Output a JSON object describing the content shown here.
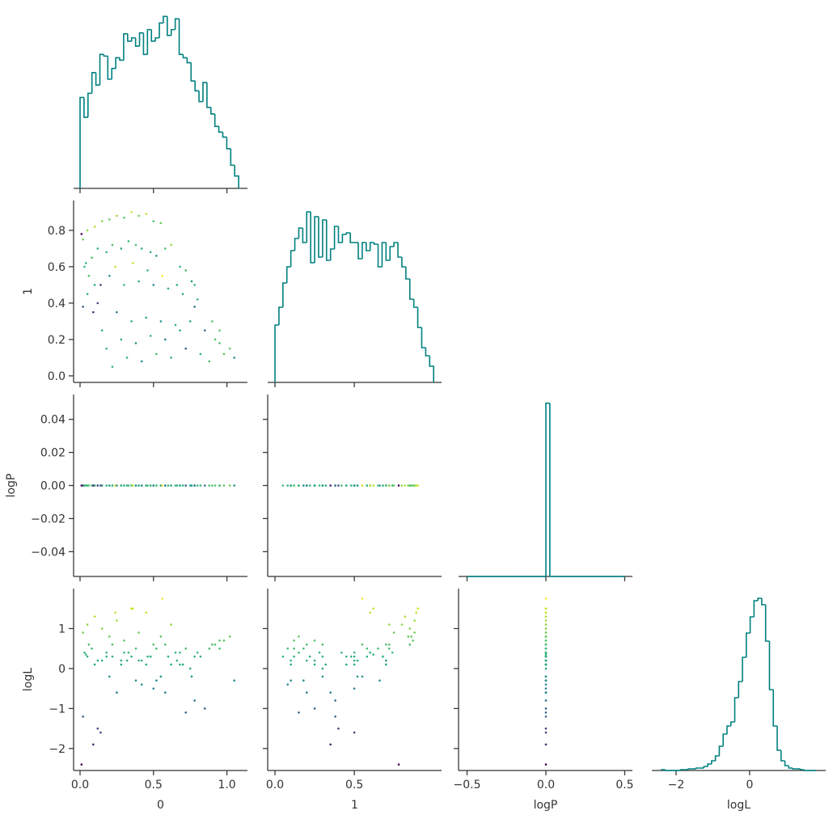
{
  "chart_data": {
    "type": "corner",
    "parameters": [
      "0",
      "1",
      "logP",
      "logL"
    ],
    "hist_color": "#008080",
    "cmap": "viridis",
    "color_by": "logL",
    "clim": [
      -2.4,
      1.8
    ],
    "axes": [
      {
        "xlim": [
          -0.044,
          1.14
        ],
        "xticks": [
          {
            "value": 0,
            "label": "0.0"
          },
          {
            "value": 0.5,
            "label": "0.5"
          },
          {
            "value": 1.0,
            "label": "1.0"
          }
        ]
      },
      {
        "xlim": [
          -0.046,
          1.05
        ],
        "xticks": [
          {
            "value": 0,
            "label": "0.0"
          },
          {
            "value": 0.5,
            "label": "0.5"
          }
        ],
        "ylim": [
          -0.036,
          0.964
        ],
        "yticks": [
          {
            "value": 0,
            "label": "0.0"
          },
          {
            "value": 0.2,
            "label": "0.2"
          },
          {
            "value": 0.4,
            "label": "0.4"
          },
          {
            "value": 0.6,
            "label": "0.6"
          },
          {
            "value": 0.8,
            "label": "0.8"
          }
        ]
      },
      {
        "xlim": [
          -0.554,
          0.549
        ],
        "xticks": [
          {
            "value": -0.5,
            "label": "−0.5"
          },
          {
            "value": 0,
            "label": "0.0"
          },
          {
            "value": 0.5,
            "label": "0.5"
          }
        ],
        "ylim": [
          -0.055,
          0.055
        ],
        "yticks": [
          {
            "value": -0.04,
            "label": "−0.04"
          },
          {
            "value": -0.02,
            "label": "−0.02"
          },
          {
            "value": 0,
            "label": "0.00"
          },
          {
            "value": 0.02,
            "label": "0.02"
          },
          {
            "value": 0.04,
            "label": "0.04"
          }
        ]
      },
      {
        "xlim": [
          -2.66,
          2.07
        ],
        "xticks": [
          {
            "value": -2,
            "label": "−2"
          },
          0
        ],
        "ylim": [
          -2.55,
          2.0
        ],
        "yticks": [
          {
            "value": -2,
            "label": "−2"
          },
          {
            "value": -1,
            "label": "−1"
          },
          0,
          1
        ]
      }
    ],
    "histograms": [
      {
        "bins": [
          0,
          0.027,
          0.054,
          0.081,
          0.108,
          0.135,
          0.162,
          0.189,
          0.216,
          0.243,
          0.27,
          0.297,
          0.324,
          0.351,
          0.378,
          0.405,
          0.432,
          0.459,
          0.486,
          0.513,
          0.54,
          0.567,
          0.594,
          0.621,
          0.648,
          0.675,
          0.702,
          0.729,
          0.756,
          0.783,
          0.81,
          0.837,
          0.864,
          0.891,
          0.918,
          0.945,
          0.972,
          0.999,
          1.026,
          1.053,
          1.08
        ],
        "counts": [
          110,
          86,
          115,
          140,
          125,
          162,
          160,
          132,
          145,
          158,
          155,
          187,
          178,
          182,
          172,
          188,
          162,
          192,
          178,
          182,
          200,
          208,
          185,
          192,
          205,
          162,
          158,
          152,
          130,
          118,
          105,
          128,
          98,
          90,
          75,
          68,
          62,
          48,
          28,
          15
        ],
        "ylim": [
          0,
          220
        ]
      },
      {
        "bins": [
          0,
          0.025,
          0.05,
          0.075,
          0.1,
          0.125,
          0.15,
          0.175,
          0.2,
          0.225,
          0.25,
          0.275,
          0.3,
          0.325,
          0.35,
          0.375,
          0.4,
          0.425,
          0.45,
          0.475,
          0.5,
          0.525,
          0.55,
          0.575,
          0.6,
          0.625,
          0.65,
          0.675,
          0.7,
          0.725,
          0.75,
          0.775,
          0.8,
          0.825,
          0.85,
          0.875,
          0.9,
          0.925,
          0.95,
          0.975,
          1.0
        ],
        "counts": [
          71,
          93,
          123,
          143,
          163,
          178,
          191,
          173,
          211,
          148,
          205,
          155,
          201,
          151,
          165,
          193,
          173,
          183,
          185,
          173,
          173,
          153,
          173,
          163,
          173,
          171,
          143,
          173,
          151,
          168,
          173,
          155,
          143,
          128,
          103,
          93,
          68,
          43,
          33,
          20
        ],
        "ylim": [
          0,
          225
        ]
      },
      {
        "bins": [
          -0.5,
          -0.475,
          -0.45,
          -0.425,
          -0.4,
          -0.375,
          -0.35,
          -0.325,
          -0.3,
          -0.275,
          -0.25,
          -0.225,
          -0.2,
          -0.175,
          -0.15,
          -0.125,
          -0.1,
          -0.075,
          -0.05,
          -0.025,
          0,
          0.025,
          0.05,
          0.075,
          0.1,
          0.125,
          0.15,
          0.175,
          0.2,
          0.225,
          0.25,
          0.275,
          0.3,
          0.325,
          0.35,
          0.375,
          0.4,
          0.425,
          0.45,
          0.475,
          0.5
        ],
        "counts": [
          0,
          0,
          0,
          0,
          0,
          0,
          0,
          0,
          0,
          0,
          0,
          0,
          0,
          0,
          0,
          0,
          0,
          0,
          0,
          0,
          200,
          0,
          0,
          0,
          0,
          0,
          0,
          0,
          0,
          0,
          0,
          0,
          0,
          0,
          0,
          0,
          0,
          0,
          0,
          0
        ],
        "ylim": [
          0,
          210
        ]
      },
      {
        "bins": [
          -2.4,
          -2.295,
          -2.19,
          -2.085,
          -1.98,
          -1.875,
          -1.77,
          -1.665,
          -1.56,
          -1.455,
          -1.35,
          -1.245,
          -1.14,
          -1.035,
          -0.93,
          -0.825,
          -0.72,
          -0.615,
          -0.51,
          -0.405,
          -0.3,
          -0.195,
          -0.09,
          0.015,
          0.12,
          0.225,
          0.33,
          0.435,
          0.54,
          0.645,
          0.75,
          0.855,
          0.96,
          1.065,
          1.17,
          1.275,
          1.38,
          1.485,
          1.59,
          1.695,
          1.8
        ],
        "counts": [
          1,
          0,
          0,
          0,
          0,
          1,
          1,
          2,
          2,
          3,
          3,
          5,
          8,
          12,
          18,
          30,
          45,
          55,
          60,
          90,
          110,
          140,
          170,
          190,
          210,
          213,
          205,
          160,
          100,
          55,
          25,
          12,
          6,
          3,
          2,
          2,
          1,
          0,
          0,
          0
        ],
        "ylim": [
          0,
          225
        ]
      }
    ],
    "samples": {
      "0": [
        0.02,
        0.05,
        0.1,
        0.15,
        0.2,
        0.25,
        0.3,
        0.35,
        0.4,
        0.45,
        0.5,
        0.55,
        0.03,
        0.08,
        0.12,
        0.18,
        0.22,
        0.28,
        0.33,
        0.38,
        0.42,
        0.48,
        0.52,
        0.58,
        0.62,
        0.68,
        0.72,
        0.78,
        0.05,
        0.1,
        0.2,
        0.3,
        0.4,
        0.5,
        0.6,
        0.7,
        0.8,
        0.9,
        0.95,
        1.02,
        0.15,
        0.25,
        0.35,
        0.45,
        0.55,
        0.65,
        0.75,
        0.85,
        0.95,
        1.05,
        0.22,
        0.32,
        0.42,
        0.52,
        0.62,
        0.72,
        0.82,
        0.92,
        0.02,
        0.06,
        0.12,
        0.18,
        0.28,
        0.38,
        0.48,
        0.58,
        0.68,
        0.78,
        0.88,
        0.98,
        0.01,
        0.04,
        0.09,
        0.14,
        0.24,
        0.36,
        0.46,
        0.56,
        0.66,
        0.76
      ],
      "1": [
        0.75,
        0.8,
        0.82,
        0.85,
        0.86,
        0.88,
        0.87,
        0.9,
        0.88,
        0.89,
        0.85,
        0.84,
        0.6,
        0.65,
        0.7,
        0.68,
        0.72,
        0.7,
        0.74,
        0.72,
        0.7,
        0.68,
        0.66,
        0.7,
        0.72,
        0.6,
        0.58,
        0.5,
        0.45,
        0.5,
        0.55,
        0.5,
        0.52,
        0.5,
        0.48,
        0.45,
        0.42,
        0.3,
        0.25,
        0.15,
        0.25,
        0.35,
        0.3,
        0.32,
        0.3,
        0.28,
        0.3,
        0.25,
        0.18,
        0.1,
        0.05,
        0.1,
        0.08,
        0.12,
        0.1,
        0.15,
        0.12,
        0.2,
        0.38,
        0.55,
        0.4,
        0.15,
        0.2,
        0.18,
        0.22,
        0.2,
        0.25,
        0.38,
        0.08,
        0.12,
        0.78,
        0.62,
        0.35,
        0.5,
        0.6,
        0.62,
        0.58,
        0.55,
        0.5,
        0.52
      ],
      "logP": [
        0,
        0,
        0,
        0,
        0,
        0,
        0,
        0,
        0,
        0,
        0,
        0,
        0,
        0,
        0,
        0,
        0,
        0,
        0,
        0,
        0,
        0,
        0,
        0,
        0,
        0,
        0,
        0,
        0,
        0,
        0,
        0,
        0,
        0,
        0,
        0,
        0,
        0,
        0,
        0,
        0,
        0,
        0,
        0,
        0,
        0,
        0,
        0,
        0,
        0,
        0,
        0,
        0,
        0,
        0,
        0,
        0,
        0,
        0,
        0,
        0,
        0,
        0,
        0,
        0,
        0,
        0,
        0,
        0,
        0,
        0,
        0,
        0,
        0,
        0,
        0,
        0,
        0,
        0,
        0
      ],
      "logL": [
        0.9,
        1.1,
        1.3,
        1.0,
        0.8,
        1.2,
        0.7,
        1.5,
        0.9,
        1.4,
        0.6,
        0.8,
        0.4,
        0.5,
        0.2,
        0.3,
        0.6,
        0.1,
        0.4,
        0.5,
        0.2,
        0.3,
        -0.3,
        0.6,
        1.1,
        0.4,
        0.5,
        0.3,
        0.3,
        0.1,
        -0.2,
        0.4,
        0.2,
        -0.5,
        0.3,
        0.1,
        0.4,
        0.6,
        0.7,
        0.8,
        0.2,
        -0.6,
        0.3,
        0.1,
        -0.2,
        0.4,
        0.0,
        -1.0,
        0.5,
        -0.3,
        0.3,
        0.2,
        -0.4,
        0.5,
        0.1,
        -1.1,
        0.3,
        0.6,
        -1.2,
        0.6,
        -1.5,
        0.4,
        0.2,
        -0.3,
        0.3,
        -0.6,
        0.1,
        -0.8,
        0.5,
        0.7,
        -2.4,
        0.35,
        -1.9,
        -1.6,
        1.4,
        1.5,
        0.3,
        1.75,
        0.2,
        -0.2
      ]
    }
  }
}
